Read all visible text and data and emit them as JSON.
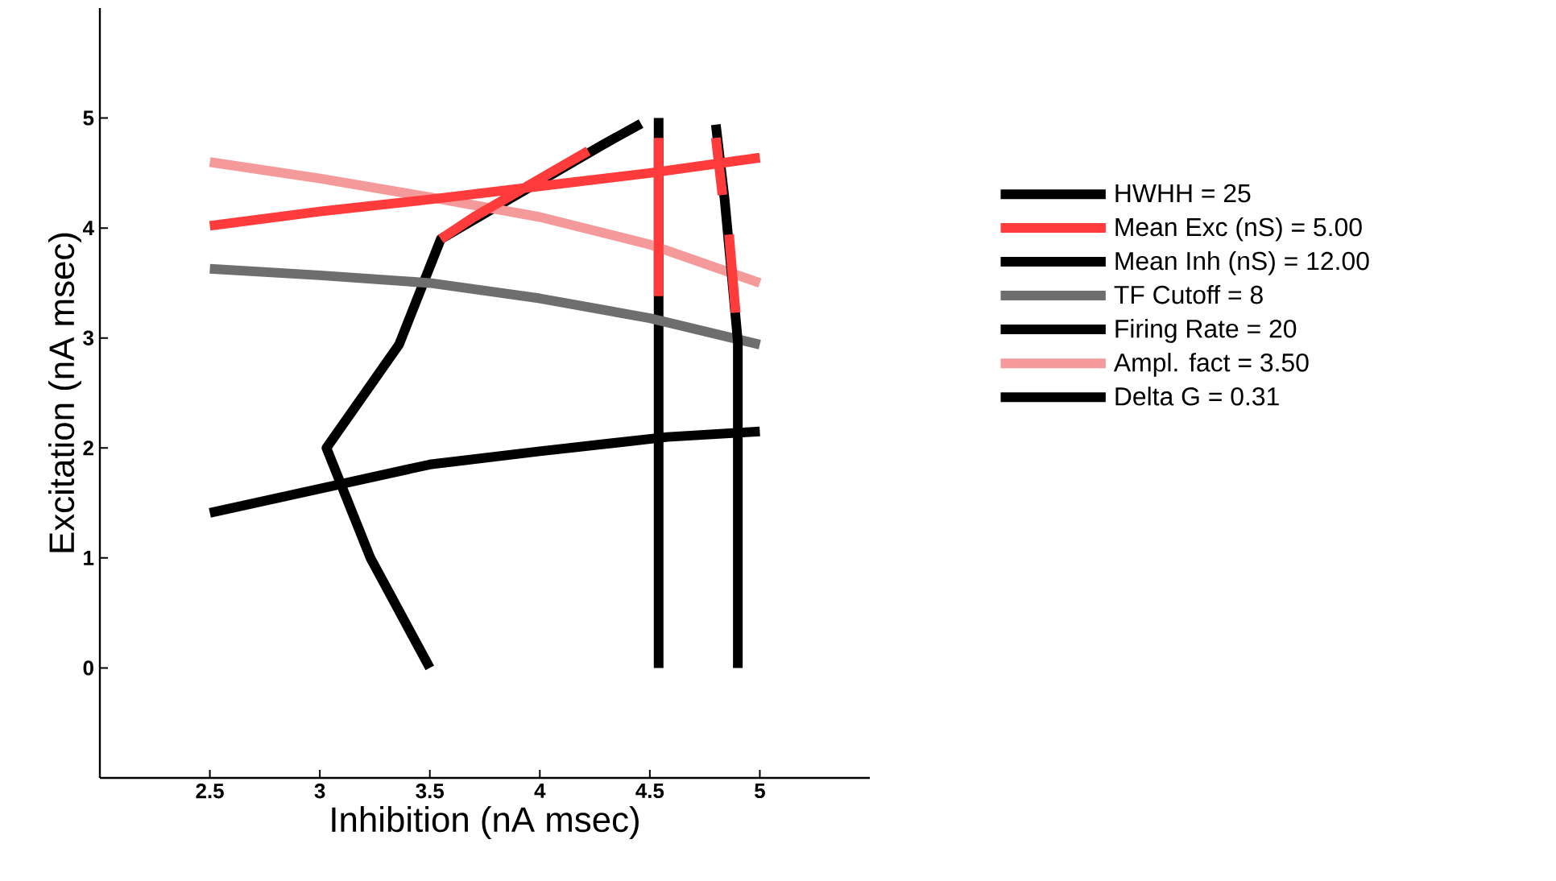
{
  "chart_data": {
    "type": "line",
    "xlabel": "Inhibition (nA msec)",
    "ylabel": "Excitation (nA msec)",
    "xlim": [
      2,
      5.5
    ],
    "ylim": [
      -1,
      6
    ],
    "xticks": [
      2.5,
      3,
      3.5,
      4,
      4.5,
      5
    ],
    "yticks": [
      0,
      1,
      2,
      3,
      4,
      5
    ],
    "legend": "right",
    "grid": false,
    "marker": "none",
    "line_style": "solid",
    "series": [
      {
        "name": "HWHH = 25",
        "color": "#000000",
        "x": [
          3.5,
          3.23,
          3.03,
          3.36,
          3.55,
          4.28,
          4.46
        ],
        "values": [
          0,
          1.0,
          2.0,
          2.94,
          3.9,
          4.75,
          4.95
        ]
      },
      {
        "name": "Mean Exc (nS) = 5.00",
        "color": "#ff3b3b",
        "x": [
          2.5,
          3,
          3.5,
          4,
          4.5,
          5,
          null,
          3.55,
          3.7,
          4.22,
          null,
          4.54,
          4.54,
          null,
          4.8,
          4.83,
          null,
          4.86,
          4.89
        ],
        "values": [
          4.02,
          4.15,
          4.26,
          4.38,
          4.5,
          4.64,
          null,
          3.9,
          4.1,
          4.7,
          null,
          4.82,
          3.38,
          null,
          4.82,
          4.3,
          null,
          3.94,
          3.23
        ]
      },
      {
        "name": "Mean Inh (nS) = 12.00",
        "color": "#000000",
        "x": [
          4.54,
          4.54
        ],
        "values": [
          0,
          5.0
        ]
      },
      {
        "name": "TF Cutoff = 8",
        "color": "#6e6e6e",
        "x": [
          2.5,
          3,
          3.5,
          4,
          4.5,
          5
        ],
        "values": [
          3.63,
          3.57,
          3.5,
          3.36,
          3.18,
          2.94
        ]
      },
      {
        "name": "Firing Rate = 20",
        "color": "#000000",
        "x": [
          2.5,
          3,
          3.5,
          4,
          4.58,
          5
        ],
        "values": [
          1.41,
          1.63,
          1.85,
          1.97,
          2.1,
          2.15
        ]
      },
      {
        "name": "Ampl. fact = 3.50",
        "color": "#f59a9a",
        "x": [
          2.5,
          3,
          3.5,
          4,
          4.5,
          5
        ],
        "values": [
          4.6,
          4.45,
          4.28,
          4.1,
          3.85,
          3.5
        ]
      },
      {
        "name": "Delta G = 0.31",
        "color": "#000000",
        "x": [
          4.8,
          4.84,
          4.87,
          4.9,
          4.9
        ],
        "values": [
          4.94,
          4.26,
          3.62,
          2.97,
          0
        ]
      }
    ]
  }
}
